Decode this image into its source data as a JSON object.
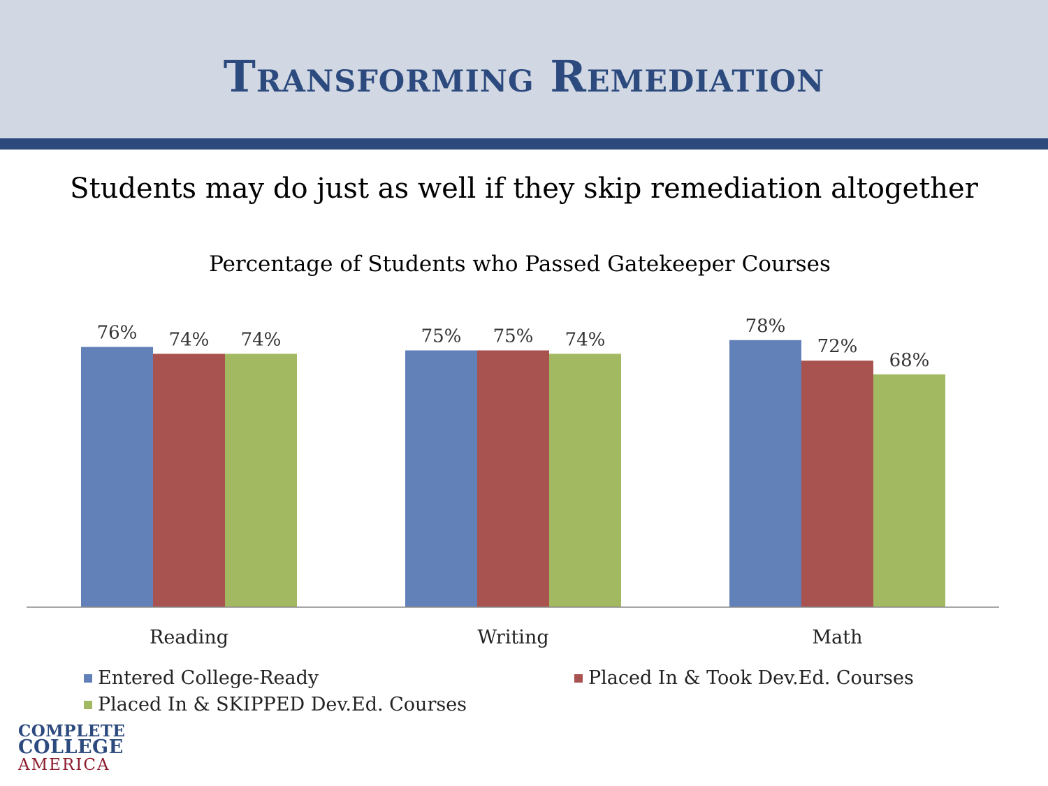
{
  "slide": {
    "title": "Transforming Remediation",
    "subtitle": "Students may do just as well if they skip remediation altogether"
  },
  "logo": {
    "line1": "COMPLETE",
    "line2": "COLLEGE",
    "line3": "AMERICA"
  },
  "chart_data": {
    "type": "bar",
    "title": "Percentage of Students who Passed Gatekeeper Courses",
    "xlabel": "",
    "ylabel": "",
    "categories": [
      "Reading",
      "Writing",
      "Math"
    ],
    "series": [
      {
        "name": "Entered College-Ready",
        "color": "#6381b9",
        "values": [
          76,
          75,
          78
        ],
        "labels": [
          "76%",
          "75%",
          "78%"
        ]
      },
      {
        "name": "Placed In & Took Dev.Ed. Courses",
        "color": "#a85350",
        "values": [
          74,
          75,
          72
        ],
        "labels": [
          "74%",
          "75%",
          "72%"
        ]
      },
      {
        "name": "Placed In & SKIPPED Dev.Ed. Courses",
        "color": "#a3b961",
        "values": [
          74,
          74,
          68
        ],
        "labels": [
          "74%",
          "74%",
          "68%"
        ]
      }
    ],
    "ylim": [
      0,
      85
    ],
    "grid": false,
    "legend_position": "bottom"
  }
}
